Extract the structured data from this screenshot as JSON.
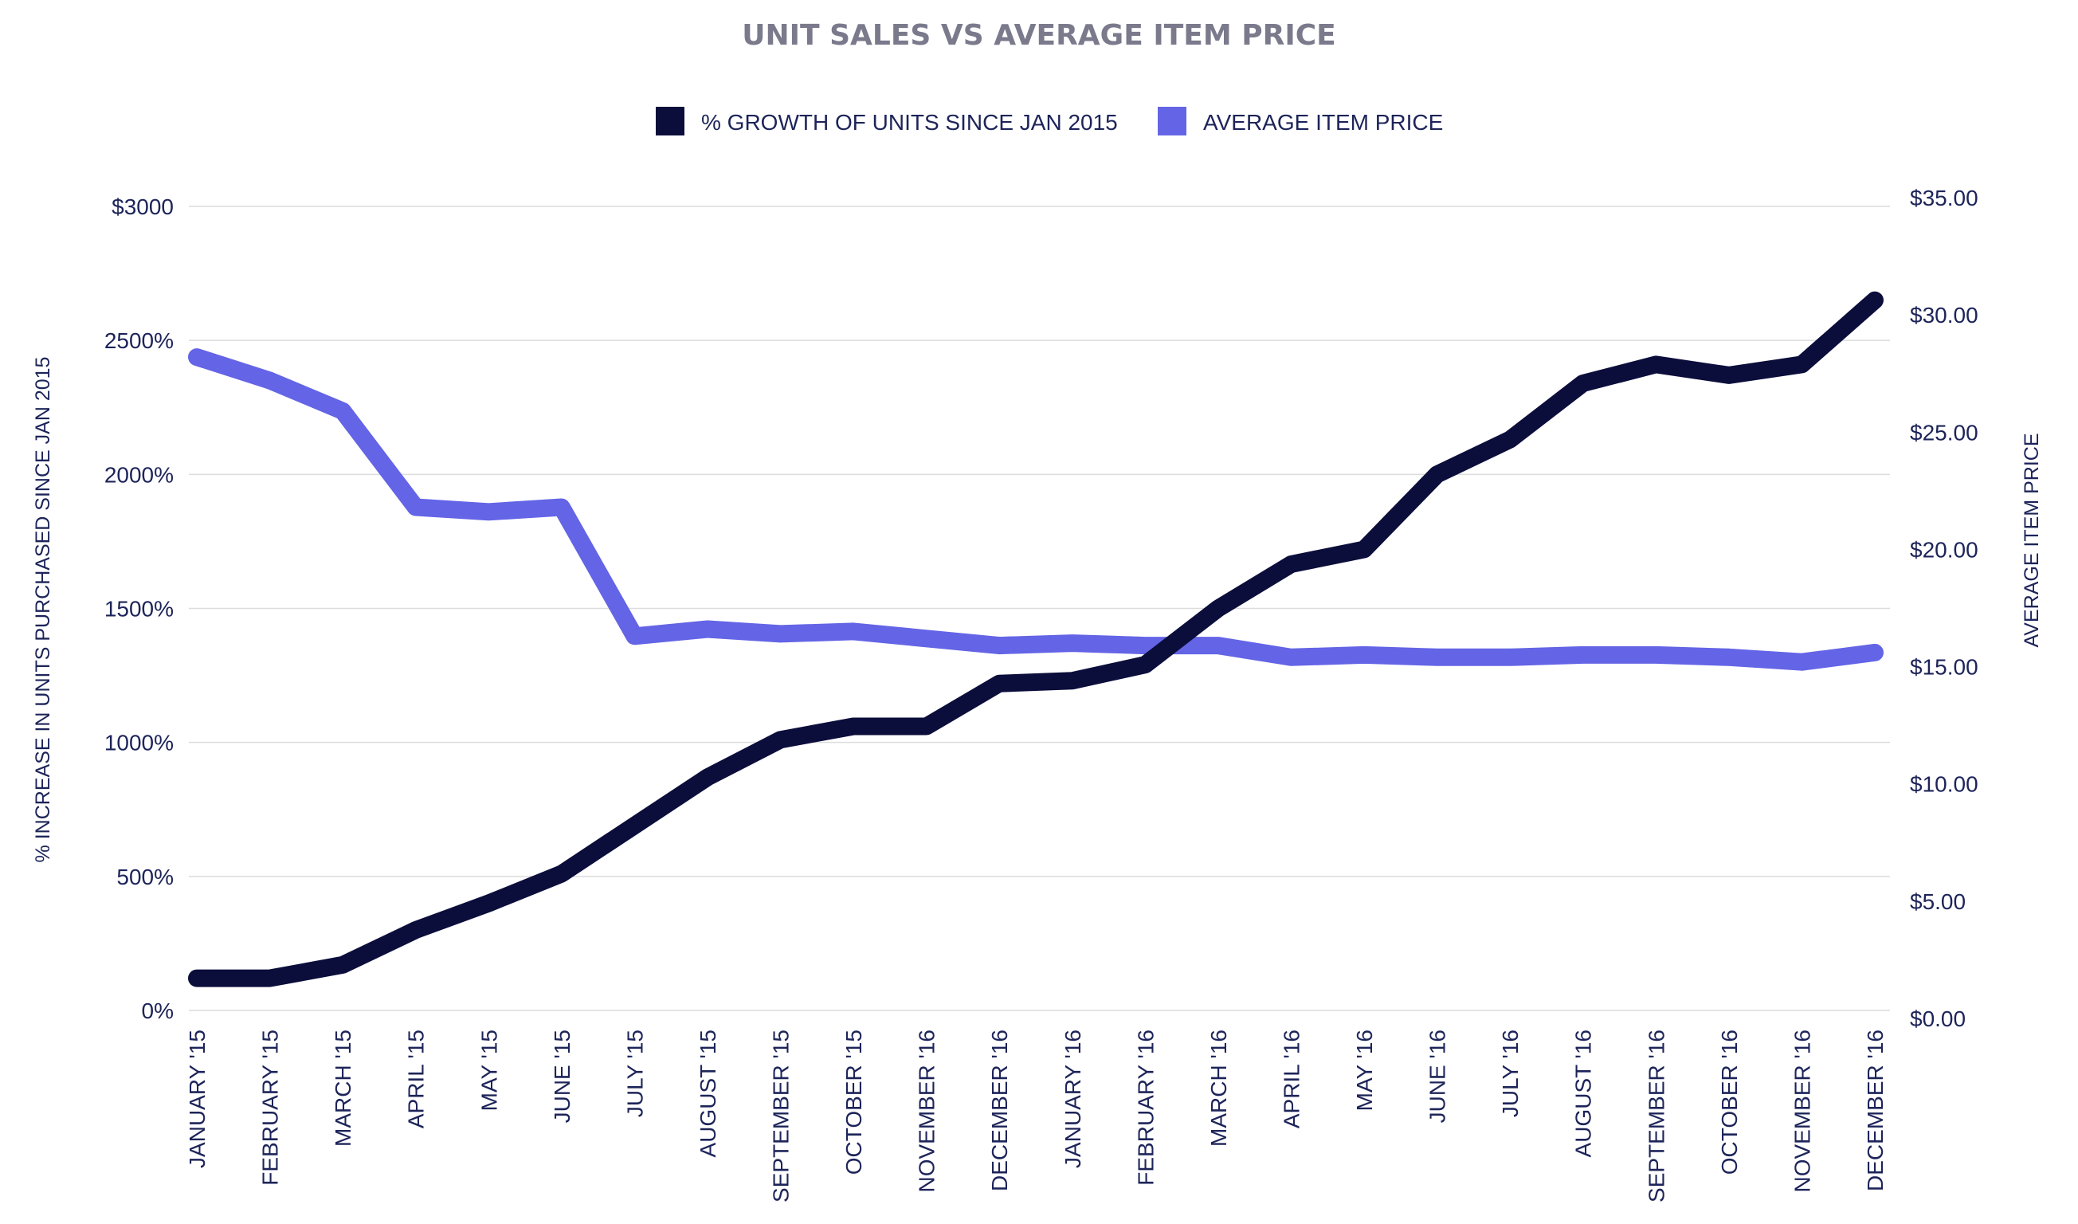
{
  "chart_data": {
    "type": "line",
    "title": "UNIT SALES VS AVERAGE ITEM PRICE",
    "categories": [
      "JANUARY '15",
      "FEBRUARY '15",
      "MARCH '15",
      "APRIL '15",
      "MAY '15",
      "JUNE '15",
      "JULY '15",
      "AUGUST '15",
      "SEPTEMBER '15",
      "OCTOBER '15",
      "NOVEMBER '16",
      "DECEMBER '16",
      "JANUARY '16",
      "FEBRUARY '16",
      "MARCH '16",
      "APRIL '16",
      "MAY '16",
      "JUNE '16",
      "JULY '16",
      "AUGUST '16",
      "SEPTEMBER '16",
      "OCTOBER '16",
      "NOVEMBER '16",
      "DECEMBER '16"
    ],
    "y_left": {
      "label": "% INCREASE IN UNITS PURCHASED SINCE JAN 2015",
      "ticks": [
        "0%",
        "500%",
        "1000%",
        "1500%",
        "2000%",
        "2500%",
        "$3000"
      ],
      "tick_values": [
        0,
        500,
        1000,
        1500,
        2000,
        2500,
        3000
      ],
      "range": [
        0,
        3000
      ]
    },
    "y_right": {
      "label": "AVERAGE ITEM PRICE",
      "ticks": [
        "$0.00",
        "$5.00",
        "$10.00",
        "$15.00",
        "$20.00",
        "$25.00",
        "$30.00",
        "$35.00"
      ],
      "tick_values": [
        0,
        5,
        10,
        15,
        20,
        25,
        30,
        35
      ],
      "range": [
        0,
        35
      ]
    },
    "series": [
      {
        "name": "% GROWTH OF UNITS SINCE JAN 2015",
        "axis": "left",
        "color": "#0b0d3b",
        "values": [
          120,
          120,
          170,
          300,
          400,
          510,
          690,
          870,
          1010,
          1060,
          1060,
          1220,
          1230,
          1290,
          1500,
          1665,
          1720,
          2000,
          2130,
          2340,
          2410,
          2370,
          2410,
          2650
        ]
      },
      {
        "name": "AVERAGE ITEM PRICE",
        "axis": "right",
        "color": "#6464e6",
        "values": [
          28.2,
          27.2,
          25.9,
          21.8,
          21.6,
          21.8,
          16.3,
          16.6,
          16.4,
          16.5,
          16.2,
          15.9,
          16.0,
          15.9,
          15.9,
          15.4,
          15.5,
          15.4,
          15.4,
          15.5,
          15.5,
          15.4,
          15.2,
          15.6
        ]
      }
    ],
    "legend_position": "top-center",
    "grid": true
  }
}
